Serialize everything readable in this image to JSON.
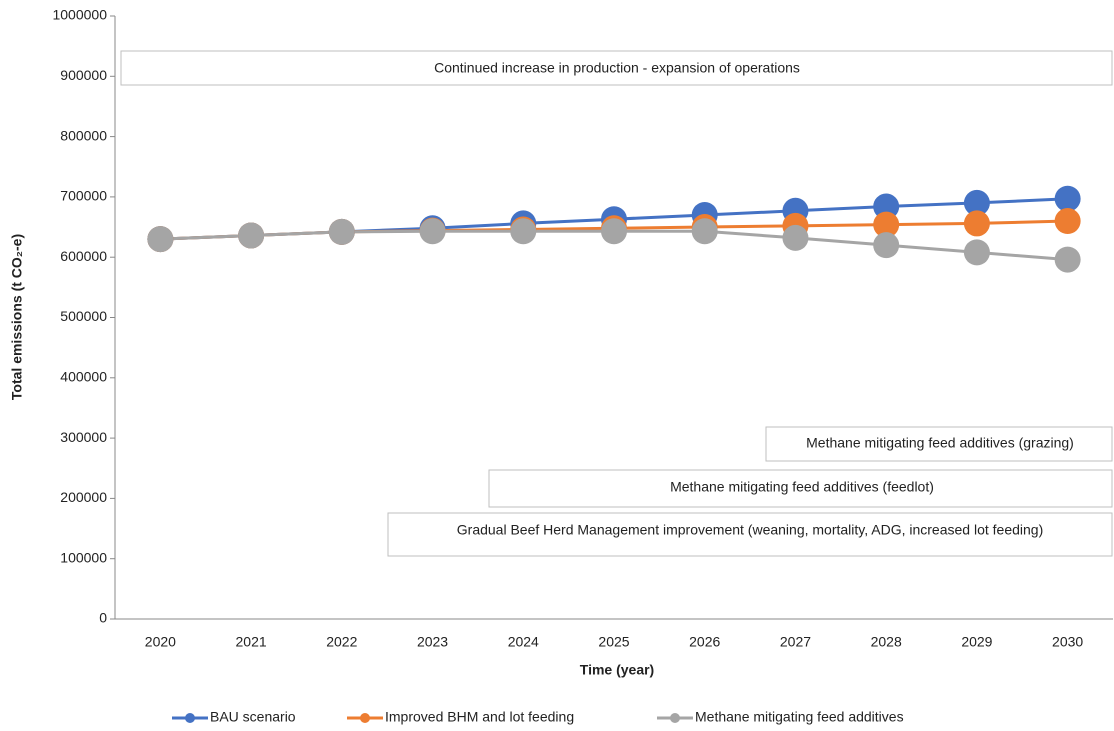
{
  "chart_data": {
    "type": "line",
    "x_label": "Time (year)",
    "y_label": "Total emissions (t CO₂-e)",
    "categories": [
      "2020",
      "2021",
      "2022",
      "2023",
      "2024",
      "2025",
      "2026",
      "2027",
      "2028",
      "2029",
      "2030"
    ],
    "series": [
      {
        "name": "BAU scenario",
        "color": "#4472c4",
        "values": [
          630000,
          636000,
          642000,
          648000,
          656000,
          663000,
          670000,
          677000,
          684000,
          690000,
          697000
        ]
      },
      {
        "name": "Improved BHM and lot feeding",
        "color": "#ed7d31",
        "values": [
          630000,
          636000,
          642000,
          644000,
          646000,
          648000,
          650000,
          652000,
          654000,
          656000,
          660000
        ]
      },
      {
        "name": "Methane mitigating feed additives",
        "color": "#a5a5a5",
        "values": [
          630000,
          636000,
          642000,
          643000,
          643000,
          643000,
          643000,
          632000,
          620000,
          608000,
          596000
        ]
      }
    ],
    "annotations": [
      "Continued increase in production - expansion of operations",
      "Methane mitigating feed additives (grazing)",
      "Methane mitigating feed additives (feedlot)",
      "Gradual Beef Herd Management improvement (weaning, mortality, ADG, increased lot feeding)"
    ],
    "ylim": [
      0,
      1000000
    ],
    "yticks": [
      0,
      100000,
      200000,
      300000,
      400000,
      500000,
      600000,
      700000,
      800000,
      900000,
      1000000
    ],
    "grid": false,
    "legend": "bottom"
  }
}
